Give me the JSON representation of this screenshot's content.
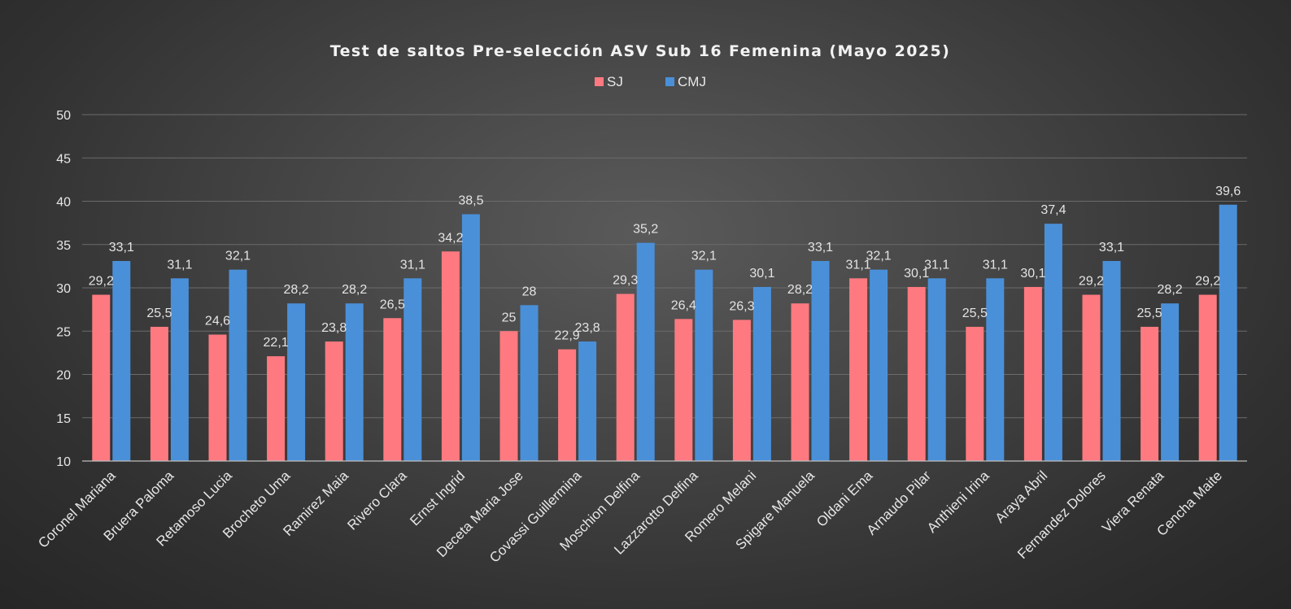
{
  "chart_data": {
    "type": "bar",
    "title": "Test de saltos Pre-selección ASV Sub 16 Femenina (Mayo 2025)",
    "categories": [
      "Coronel Mariana",
      "Bruera Paloma",
      "Retamoso Lucia",
      "Brocheto Uma",
      "Ramirez Maia",
      "Rivero Clara",
      "Ernst Ingrid",
      "Deceta Maria Jose",
      "Covassi Guillermina",
      "Moschion Delfina",
      "Lazzarotto Delfina",
      "Romero Melani",
      "Spigare Manuela",
      "Oldani Ema",
      "Arnaudo Pilar",
      "Anthieni Irina",
      "Araya Abril",
      "Fernandez Dolores",
      "Viera Renata",
      "Cencha Maite"
    ],
    "series": [
      {
        "name": "SJ",
        "color": "#ff7a80",
        "values": [
          29.2,
          25.5,
          24.6,
          22.1,
          23.8,
          26.5,
          34.2,
          25,
          22.9,
          29.3,
          26.4,
          26.3,
          28.2,
          31.1,
          30.1,
          25.5,
          30.1,
          29.2,
          25.5,
          29.2
        ],
        "labels": [
          "29,2",
          "25,5",
          "24,6",
          "22,1",
          "23,8",
          "26,5",
          "34,2",
          "25",
          "22,9",
          "29,3",
          "26,4",
          "26,3",
          "28,2",
          "31,1",
          "30,1",
          "25,5",
          "30,1",
          "29,2",
          "25,5",
          "29,2"
        ]
      },
      {
        "name": "CMJ",
        "color": "#4a90d9",
        "values": [
          33.1,
          31.1,
          32.1,
          28.2,
          28.2,
          31.1,
          38.5,
          28,
          23.8,
          35.2,
          32.1,
          30.1,
          33.1,
          32.1,
          31.1,
          31.1,
          37.4,
          33.1,
          28.2,
          39.6
        ],
        "labels": [
          "33,1",
          "31,1",
          "32,1",
          "28,2",
          "28,2",
          "31,1",
          "38,5",
          "28",
          "23,8",
          "35,2",
          "32,1",
          "30,1",
          "33,1",
          "32,1",
          "31,1",
          "31,1",
          "37,4",
          "33,1",
          "28,2",
          "39,6"
        ]
      }
    ],
    "xlabel": "",
    "ylabel": "",
    "ylim": [
      10,
      50
    ],
    "yticks": [
      "10",
      "15",
      "20",
      "25",
      "30",
      "35",
      "40",
      "45",
      "50"
    ],
    "grid": true,
    "legend_position": "top-center"
  }
}
